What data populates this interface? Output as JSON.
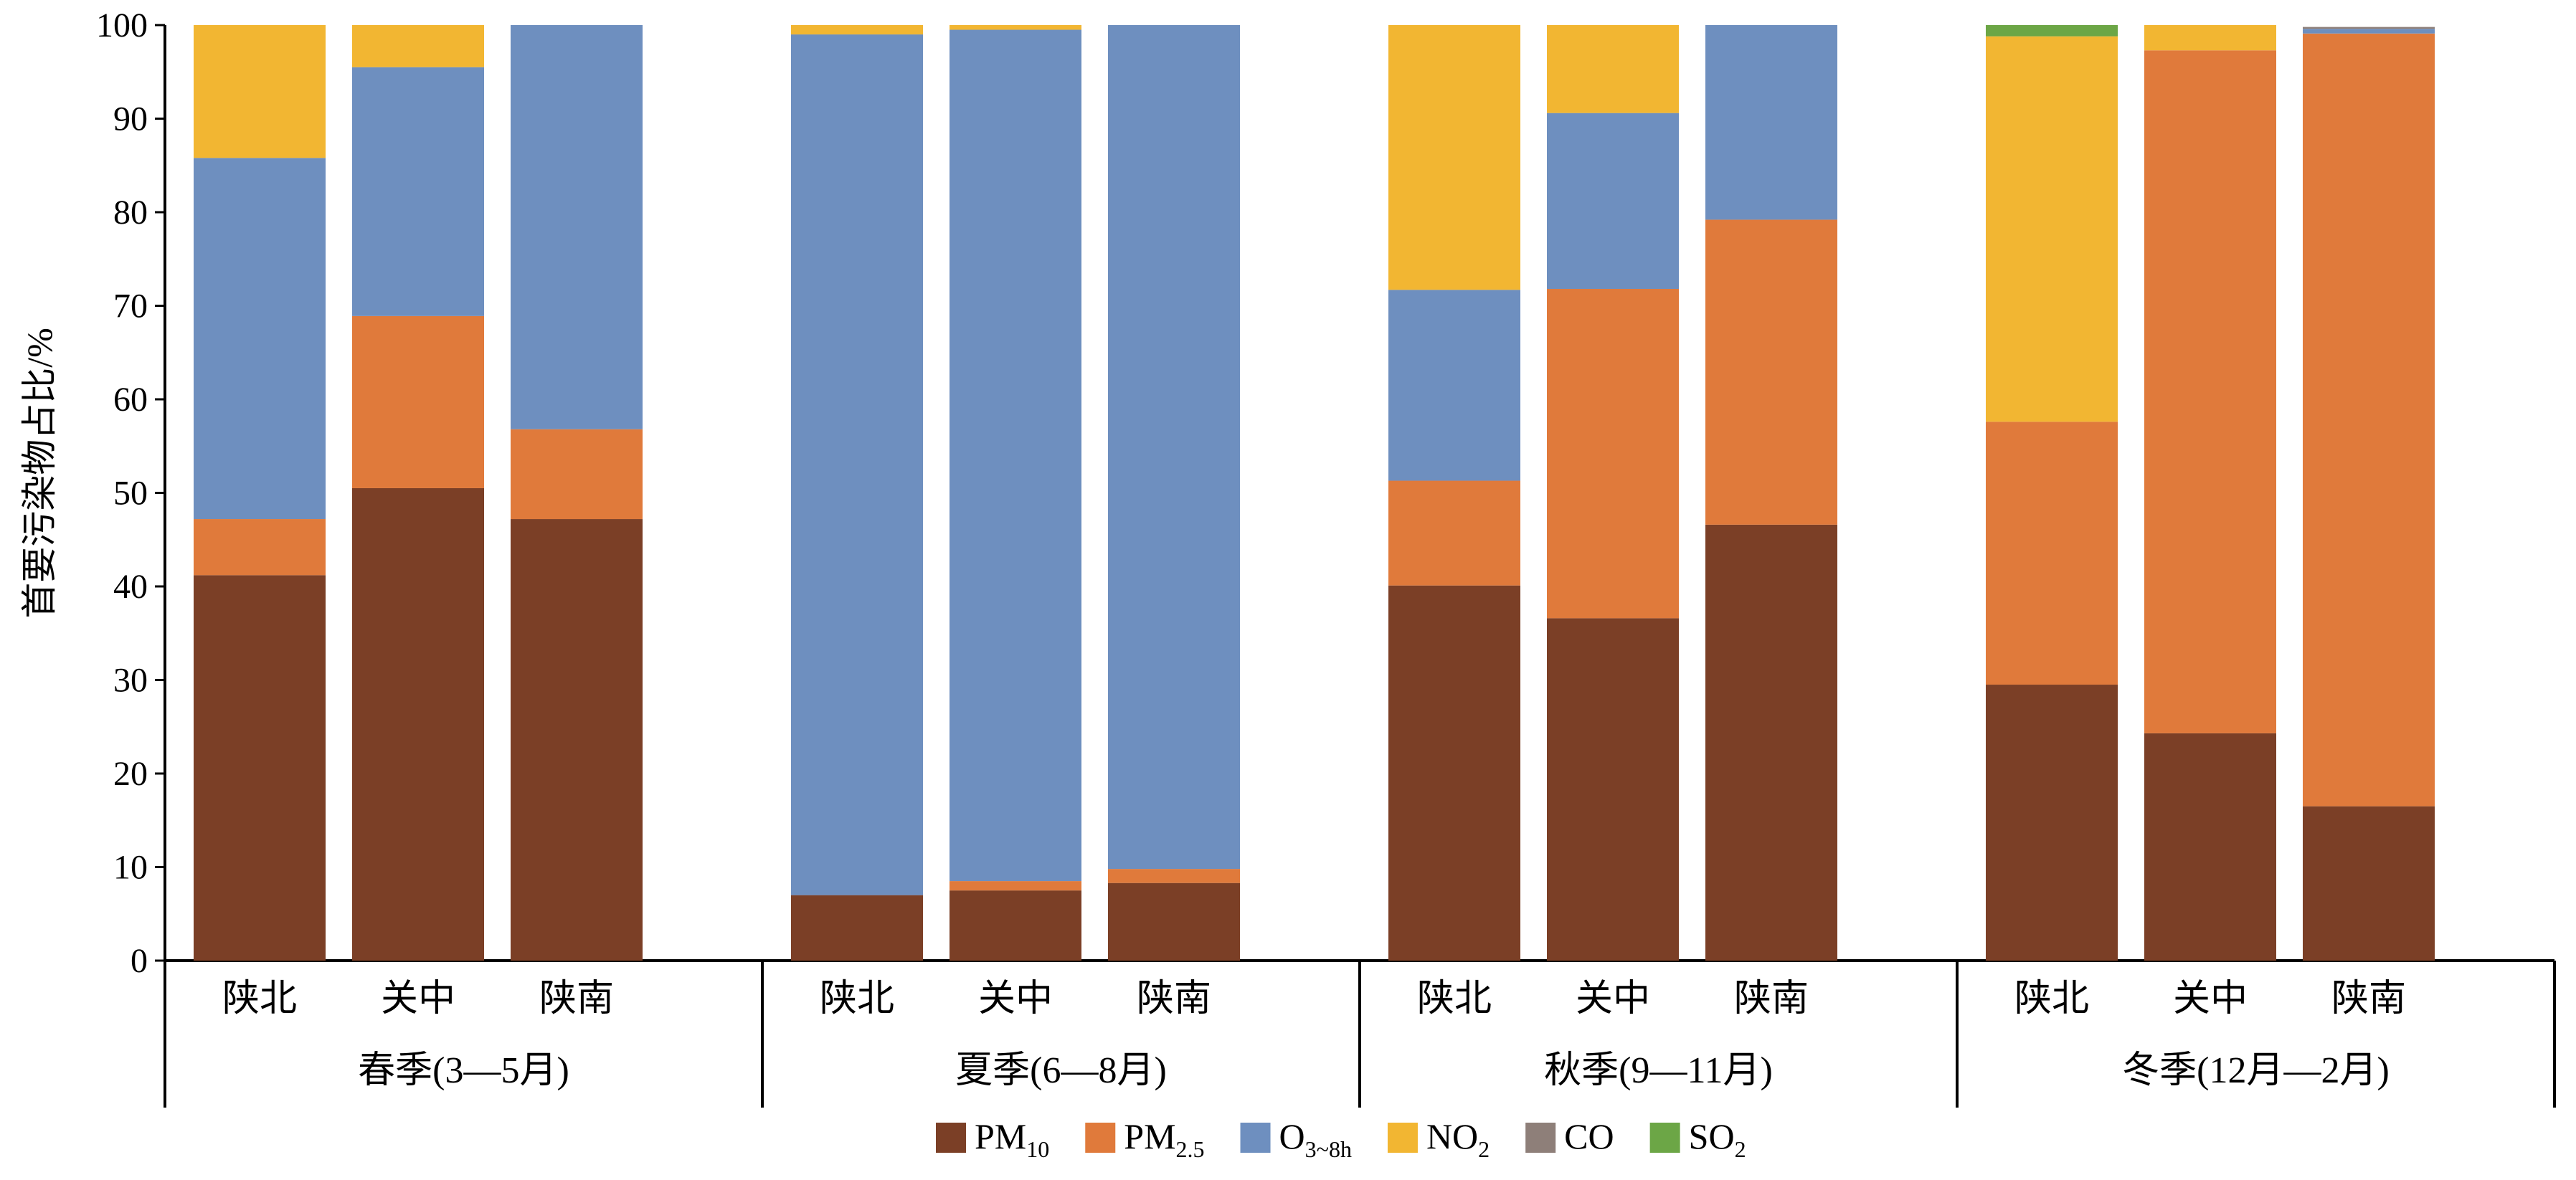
{
  "chart_data": {
    "type": "bar",
    "stacked": true,
    "ylabel": "首要污染物占比/%",
    "ylim": [
      0,
      100
    ],
    "yticks": [
      "0",
      "10",
      "20",
      "30",
      "40",
      "50",
      "60",
      "70",
      "80",
      "90",
      "100"
    ],
    "groups": [
      {
        "label": "春季(3—5月)",
        "categories": [
          "陕北",
          "关中",
          "陕南"
        ]
      },
      {
        "label": "夏季(6—8月)",
        "categories": [
          "陕北",
          "关中",
          "陕南"
        ]
      },
      {
        "label": "秋季(9—11月)",
        "categories": [
          "陕北",
          "关中",
          "陕南"
        ]
      },
      {
        "label": "冬季(12月—2月)",
        "categories": [
          "陕北",
          "关中",
          "陕南"
        ]
      }
    ],
    "series": [
      {
        "name": "PM10",
        "base": "PM",
        "sub": "10",
        "color": "#7B3F26",
        "values": [
          41.2,
          50.5,
          47.2,
          7.0,
          7.5,
          8.3,
          40.1,
          36.6,
          46.6,
          29.5,
          24.3,
          16.5
        ]
      },
      {
        "name": "PM2.5",
        "base": "PM",
        "sub": "2.5",
        "color": "#E07A3B",
        "values": [
          6.0,
          18.4,
          9.6,
          0.0,
          1.0,
          1.5,
          11.2,
          35.2,
          32.6,
          28.1,
          73.0,
          82.6
        ]
      },
      {
        "name": "O3~8h",
        "base": "O",
        "sub": "3~8h",
        "color": "#6E8FBF",
        "values": [
          38.6,
          26.6,
          43.2,
          92.0,
          91.0,
          90.2,
          20.4,
          18.8,
          20.8,
          0.0,
          0.0,
          0.5
        ]
      },
      {
        "name": "NO2",
        "base": "NO",
        "sub": "2",
        "color": "#F2B632",
        "values": [
          14.2,
          4.5,
          0.0,
          1.0,
          0.5,
          0.0,
          28.3,
          9.4,
          0.0,
          41.2,
          2.7,
          0.0
        ]
      },
      {
        "name": "CO",
        "base": "CO",
        "sub": "",
        "color": "#8E7F79",
        "values": [
          0.0,
          0.0,
          0.0,
          0.0,
          0.0,
          0.0,
          0.0,
          0.0,
          0.0,
          0.0,
          0.0,
          0.2
        ]
      },
      {
        "name": "SO2",
        "base": "SO",
        "sub": "2",
        "color": "#6CA646",
        "values": [
          0.0,
          0.0,
          0.0,
          0.0,
          0.0,
          0.0,
          0.0,
          0.0,
          0.0,
          1.2,
          0.0,
          0.0
        ]
      }
    ]
  }
}
